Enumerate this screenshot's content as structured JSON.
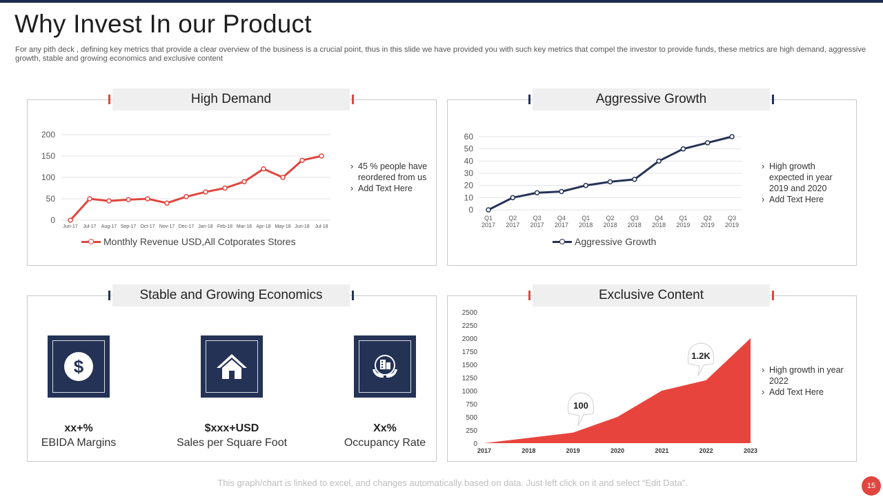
{
  "header": {
    "title": "Why Invest In our Product",
    "subtitle": "For any pith deck , defining key metrics that provide a clear overview of the business is a crucial point, thus in this slide we have provided you with such key metrics that compel the investor to provide funds, these metrics are high demand, aggressive growth, stable and growing economics and exclusive content"
  },
  "panels": {
    "high_demand": {
      "title": "High  Demand",
      "bullets": [
        "45 % people have reordered from us",
        "Add Text Here"
      ],
      "legend": "Monthly Revenue USD,All Cotporates Stores"
    },
    "aggressive_growth": {
      "title": "Aggressive Growth",
      "bullets": [
        "High growth expected in year 2019 and 2020",
        "Add Text Here"
      ],
      "legend": "Aggressive Growth"
    },
    "economics": {
      "title": "Stable and Growing Economics",
      "metrics": [
        {
          "value": "xx+%",
          "label": "EBIDA Margins",
          "icon": "dollar-icon"
        },
        {
          "value": "$xxx+USD",
          "label": "Sales per Square Foot",
          "icon": "house-icon"
        },
        {
          "value": "Xx%",
          "label": "Occupancy Rate",
          "icon": "building-hands-icon"
        }
      ]
    },
    "exclusive_content": {
      "title": "Exclusive Content",
      "bullets": [
        "High growth in year 2022",
        "Add Text Here"
      ],
      "callouts": [
        "100",
        "1.2K"
      ]
    }
  },
  "footer": {
    "note": "This graph/chart is linked to excel,  and changes automatically based on data. Just left click on it and select “Edit Data”.",
    "page_number": "15"
  },
  "colors": {
    "red": "#e0463f",
    "navy": "#243255"
  },
  "chart_data": [
    {
      "type": "line",
      "title": "High  Demand",
      "categories": [
        "Jun-17",
        "Jul-17",
        "Aug-17",
        "Sep-17",
        "Oct-17",
        "Nov-17",
        "Dec-17",
        "Jan-18",
        "Feb-18",
        "Mar-18",
        "Apr-18",
        "May-18",
        "Jun-18",
        "Jul-18"
      ],
      "series": [
        {
          "name": "Monthly Revenue USD,All Cotporates Stores",
          "values": [
            0,
            50,
            45,
            48,
            50,
            40,
            55,
            66,
            75,
            90,
            120,
            100,
            140,
            150
          ]
        }
      ],
      "yticks": [
        "0",
        "50",
        "100",
        "150",
        "200"
      ],
      "ylim": [
        0,
        200
      ],
      "grid": true,
      "legend": "bottom"
    },
    {
      "type": "line",
      "title": "Aggressive Growth",
      "categories": [
        [
          "Q1",
          "2017"
        ],
        [
          "Q2",
          "2017"
        ],
        [
          "Q3",
          "2017"
        ],
        [
          "Q4",
          "2017"
        ],
        [
          "Q1",
          "2018"
        ],
        [
          "Q2",
          "2018"
        ],
        [
          "Q3",
          "2018"
        ],
        [
          "Q4",
          "2018"
        ],
        [
          "Q1",
          "2019"
        ],
        [
          "Q2",
          "2019"
        ],
        [
          "Q3",
          "2019"
        ]
      ],
      "series": [
        {
          "name": "Aggressive Growth",
          "values": [
            0,
            10,
            14,
            15,
            20,
            23,
            25,
            40,
            50,
            55,
            60
          ]
        }
      ],
      "yticks": [
        "0",
        "10",
        "20",
        "30",
        "40",
        "50",
        "60"
      ],
      "ylim": [
        0,
        60
      ],
      "grid": true,
      "legend": "bottom"
    },
    {
      "type": "area",
      "title": "Exclusive Content",
      "categories": [
        "2017",
        "2018",
        "2019",
        "2020",
        "2021",
        "2022",
        "2023"
      ],
      "series": [
        {
          "name": "Exclusive Content",
          "values": [
            0,
            100,
            200,
            500,
            1000,
            1200,
            2000
          ]
        }
      ],
      "yticks": [
        "0",
        "250",
        "500",
        "750",
        "1000",
        "1250",
        "1500",
        "1750",
        "2000",
        "2250",
        "2500"
      ],
      "ylim": [
        0,
        2500
      ],
      "grid": false
    }
  ]
}
